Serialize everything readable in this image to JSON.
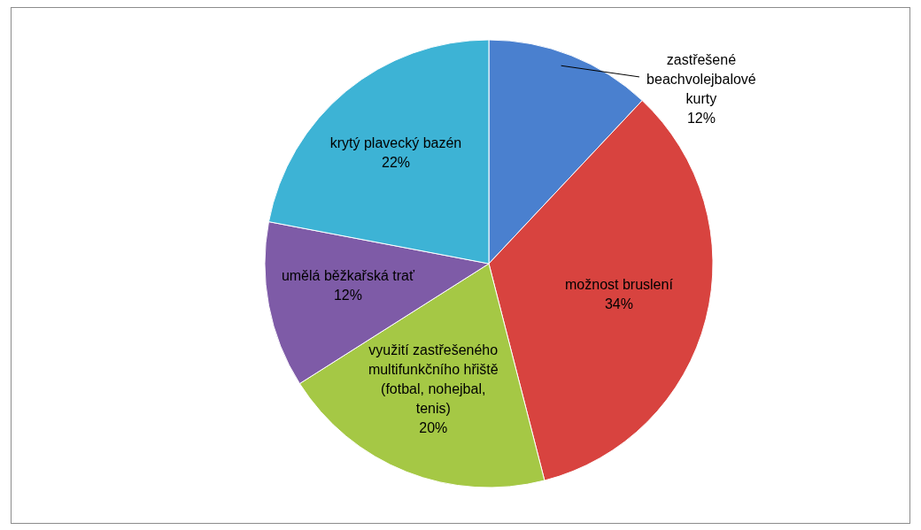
{
  "chart_data": {
    "type": "pie",
    "categories": [
      "zastřešené beachvolejbalové kurty",
      "možnost bruslení",
      "využití zastřešeného multifunkčního hřiště (fotbal, nohejbal, tenis)",
      "umělá běžkařská trať",
      "krytý plavecký bazén"
    ],
    "values": [
      12,
      34,
      20,
      12,
      22
    ],
    "value_labels": [
      "12%",
      "34%",
      "20%",
      "12%",
      "22%"
    ],
    "colors": [
      "#4a80cf",
      "#d8433f",
      "#a5c845",
      "#7e5ba7",
      "#3db3d5"
    ],
    "legend": false
  }
}
